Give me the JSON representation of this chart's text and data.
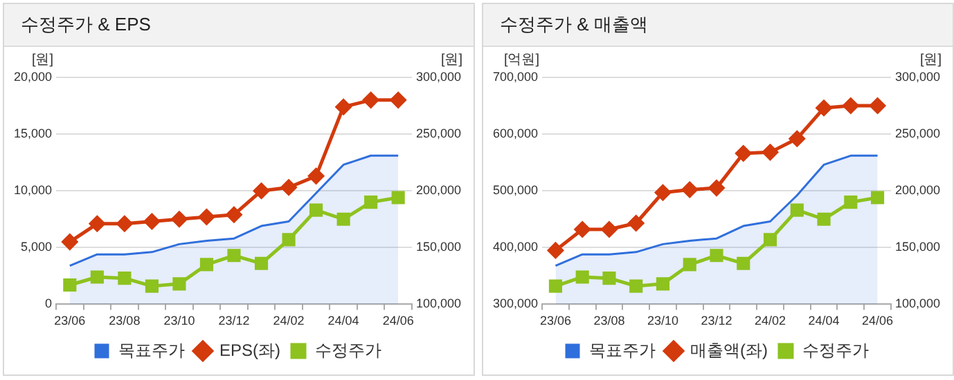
{
  "chart_data": [
    {
      "type": "line",
      "title": "수정주가 & EPS",
      "ylabel": "[원]",
      "y2label": "[원]",
      "categories": [
        "23/06",
        null,
        "23/08",
        null,
        "23/10",
        null,
        "23/12",
        null,
        "24/02",
        null,
        "24/04",
        null,
        "24/06"
      ],
      "ylim": [
        0,
        20000
      ],
      "yticks": [
        {
          "value": 0,
          "label": "0"
        },
        {
          "value": 5000,
          "label": "5,000"
        },
        {
          "value": 10000,
          "label": "10,000"
        },
        {
          "value": 15000,
          "label": "15,000"
        },
        {
          "value": 20000,
          "label": "20,000"
        }
      ],
      "y2lim": [
        100000,
        300000
      ],
      "y2ticks": [
        {
          "value": 100000,
          "label": "100,000"
        },
        {
          "value": 150000,
          "label": "150,000"
        },
        {
          "value": 200000,
          "label": "200,000"
        },
        {
          "value": 250000,
          "label": "250,000"
        },
        {
          "value": 300000,
          "label": "300,000"
        }
      ],
      "grid": "y",
      "legend": "bottom",
      "series": [
        {
          "name": "목표주가",
          "type": "area",
          "axis": "y2",
          "marker": "none",
          "color": "#2f6fdc",
          "values": [
            134000,
            144000,
            144000,
            146000,
            153000,
            156000,
            158000,
            169000,
            173000,
            198000,
            223000,
            231000,
            231000
          ]
        },
        {
          "name": "EPS(좌)",
          "marker": "diamond",
          "color": "#d33a0c",
          "values": [
            5500,
            7100,
            7100,
            7300,
            7500,
            7700,
            7900,
            10000,
            10300,
            11300,
            17400,
            18000,
            18000
          ]
        },
        {
          "name": "수정주가",
          "axis": "y2",
          "marker": "square",
          "color": "#8dc21f",
          "values": [
            117000,
            124000,
            123000,
            116000,
            118000,
            135000,
            143000,
            136000,
            157000,
            183000,
            175000,
            190000,
            194000
          ]
        }
      ]
    },
    {
      "type": "line",
      "title": "수정주가 & 매출액",
      "ylabel": "[억원]",
      "y2label": "[원]",
      "categories": [
        "23/06",
        null,
        "23/08",
        null,
        "23/10",
        null,
        "23/12",
        null,
        "24/02",
        null,
        "24/04",
        null,
        "24/06"
      ],
      "ylim": [
        300000,
        700000
      ],
      "yticks": [
        {
          "value": 300000,
          "label": "300,000"
        },
        {
          "value": 400000,
          "label": "400,000"
        },
        {
          "value": 500000,
          "label": "500,000"
        },
        {
          "value": 600000,
          "label": "600,000"
        },
        {
          "value": 700000,
          "label": "700,000"
        }
      ],
      "y2lim": [
        100000,
        300000
      ],
      "y2ticks": [
        {
          "value": 100000,
          "label": "100,000"
        },
        {
          "value": 150000,
          "label": "150,000"
        },
        {
          "value": 200000,
          "label": "200,000"
        },
        {
          "value": 250000,
          "label": "250,000"
        },
        {
          "value": 300000,
          "label": "300,000"
        }
      ],
      "grid": "y",
      "legend": "bottom",
      "series": [
        {
          "name": "목표주가",
          "type": "area",
          "axis": "y2",
          "marker": "none",
          "color": "#2f6fdc",
          "values": [
            134000,
            144000,
            144000,
            146000,
            153000,
            156000,
            158000,
            169000,
            173000,
            196000,
            223000,
            231000,
            231000
          ]
        },
        {
          "name": "매출액(좌)",
          "marker": "diamond",
          "color": "#d33a0c",
          "values": [
            395000,
            432000,
            432000,
            443000,
            497000,
            502000,
            505000,
            566000,
            568000,
            592000,
            646000,
            650000,
            650000
          ]
        },
        {
          "name": "수정주가",
          "axis": "y2",
          "marker": "square",
          "color": "#8dc21f",
          "values": [
            116000,
            124000,
            123000,
            116000,
            118000,
            135000,
            143000,
            136000,
            157000,
            183000,
            175000,
            190000,
            194000
          ]
        }
      ]
    }
  ]
}
